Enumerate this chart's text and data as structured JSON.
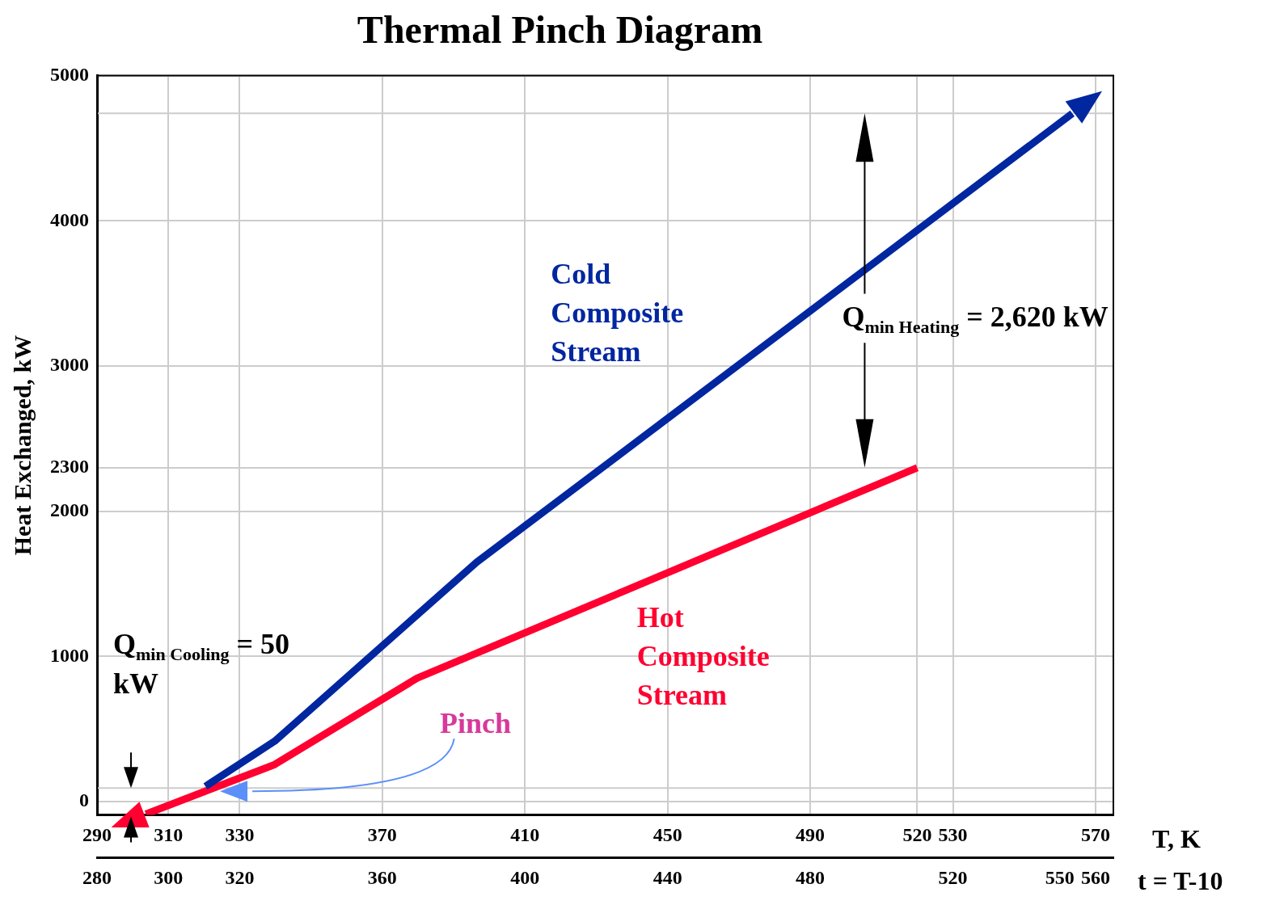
{
  "chart_data": {
    "type": "line",
    "title": "Thermal Pinch Diagram",
    "xlabel": "T, K",
    "x2label": "t = T-10",
    "ylabel": "Heat Exchanged, kW",
    "series": [
      {
        "name": "Cold Composite Stream",
        "color": "#0026a0",
        "x": [
          320.4,
          339.8,
          396.5,
          563.5
        ],
        "values": [
          106,
          417,
          1650,
          4740
        ]
      },
      {
        "name": "Hot Composite Stream",
        "color": "#ff0030",
        "x": [
          520,
          379.7,
          339.8,
          303.7
        ],
        "values": [
          2300,
          850,
          256,
          -85
        ]
      }
    ],
    "xlim": [
      290,
      575
    ],
    "xticks": [
      290,
      310,
      330,
      370,
      410,
      450,
      490,
      520,
      530,
      570
    ],
    "x2lim": [
      280,
      565
    ],
    "x2ticks": [
      280,
      300,
      320,
      360,
      400,
      440,
      480,
      520,
      550,
      560
    ],
    "ylim": [
      -90,
      5000
    ],
    "yticks": [
      0,
      1000,
      2000,
      2300,
      3000,
      4000,
      5000
    ],
    "ref_lines": [
      {
        "axis": "y",
        "value": 95,
        "color": "#cccccc"
      },
      {
        "axis": "y",
        "value": 4740,
        "color": "#cccccc"
      }
    ],
    "annotations": [
      "Pinch",
      "Q$_{min Heating}$ = 2,620 kW",
      "Q$_{min Cooling}$ = 50 kW"
    ],
    "grid": true,
    "legend": false,
    "marker": "none",
    "line_style": "solid"
  }
}
